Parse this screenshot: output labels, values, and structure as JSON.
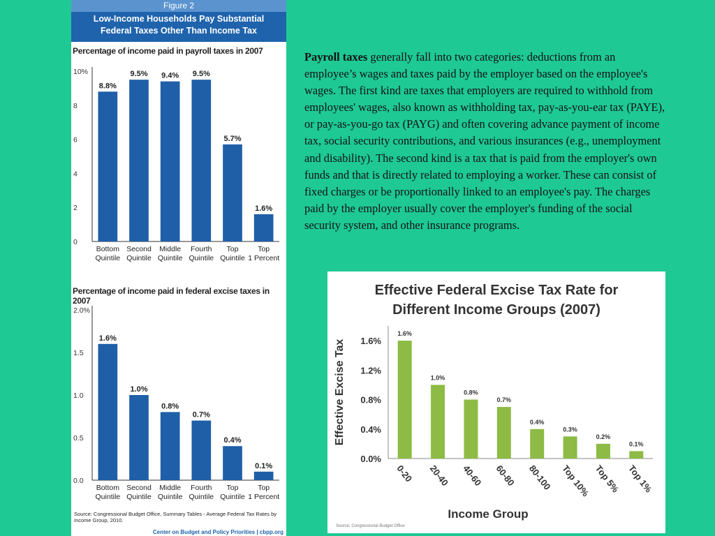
{
  "figure": {
    "label": "Figure 2",
    "title_line1": "Low-Income Households Pay Substantial",
    "title_line2": "Federal Taxes Other Than Income Tax",
    "source_note": "Source: Congressional Budget Office, Summary Tables - Average Federal Tax Rates by Income Group, 2010.",
    "credit": "Center on Budget and Policy Priorities | cbpp.org"
  },
  "paragraph": {
    "lead": "Payroll taxes",
    "body": " generally fall into two categories: deductions from an employee’s wages and taxes paid by the employer based on the employee's wages. The first kind are taxes that employers are required to withhold from employees' wages, also known as withholding tax, pay-as-you-ear  tax (PAYE), or pay-as-you-go tax (PAYG) and often covering advance payment of income tax, social security contributions, and various insurances (e.g., unemployment and disability). The second kind is a tax that is paid from the employer's own funds and that is directly related to employing a worker. These can consist of fixed charges or be proportionally linked to an employee's pay. The charges paid by the employer usually cover the employer's funding of the social security system, and other insurance programs."
  },
  "colors": {
    "background": "#1ec994",
    "cbpp_bar": "#1f5fa8",
    "excise_bar": "#8dbb45"
  },
  "chart_data": [
    {
      "type": "bar",
      "title": "Percentage of income paid in payroll taxes in 2007",
      "categories": [
        "Bottom Quintile",
        "Second Quintile",
        "Middle Quintile",
        "Fourth Quintile",
        "Top Quintile",
        "Top 1 Percent"
      ],
      "category_lines": [
        [
          "Bottom",
          "Quintile"
        ],
        [
          "Second",
          "Quintile"
        ],
        [
          "Middle",
          "Quintile"
        ],
        [
          "Fourth",
          "Quintile"
        ],
        [
          "Top",
          "Quintile"
        ],
        [
          "Top",
          "1 Percent"
        ]
      ],
      "values": [
        8.8,
        9.5,
        9.4,
        9.5,
        5.7,
        1.6
      ],
      "data_labels": [
        "8.8%",
        "9.5%",
        "9.4%",
        "9.5%",
        "5.7%",
        "1.6%"
      ],
      "yticks": [
        "0",
        "2",
        "4",
        "6",
        "8",
        "10%"
      ],
      "ylim": [
        0,
        10
      ],
      "grid": false
    },
    {
      "type": "bar",
      "title": "Percentage of income paid in federal excise taxes in 2007",
      "categories": [
        "Bottom Quintile",
        "Second Quintile",
        "Middle Quintile",
        "Fourth Quintile",
        "Top Quintile",
        "Top 1 Percent"
      ],
      "category_lines": [
        [
          "Bottom",
          "Quintile"
        ],
        [
          "Second",
          "Quintile"
        ],
        [
          "Middle",
          "Quintile"
        ],
        [
          "Fourth",
          "Quintile"
        ],
        [
          "Top",
          "Quintile"
        ],
        [
          "Top",
          "1 Percent"
        ]
      ],
      "values": [
        1.6,
        1.0,
        0.8,
        0.7,
        0.4,
        0.1
      ],
      "data_labels": [
        "1.6%",
        "1.0%",
        "0.8%",
        "0.7%",
        "0.4%",
        "0.1%"
      ],
      "yticks": [
        "0.0",
        "0.5",
        "1.0",
        "1.5",
        "2.0%"
      ],
      "ylim": [
        0,
        2
      ],
      "grid": false
    },
    {
      "type": "bar",
      "title": "Effective Federal Excise Tax Rate for Different Income Groups (2007)",
      "title_lines": [
        "Effective Federal Excise Tax Rate for",
        "Different Income Groups (2007)"
      ],
      "xlabel": "Income Group",
      "ylabel": "Effective Excise Tax",
      "categories": [
        "0-20",
        "20-40",
        "40-60",
        "60-80",
        "80-100",
        "Top 10%",
        "Top 5%",
        "Top 1%"
      ],
      "values": [
        1.6,
        1.0,
        0.8,
        0.7,
        0.4,
        0.3,
        0.2,
        0.1
      ],
      "data_labels": [
        "1.6%",
        "1.0%",
        "0.8%",
        "0.7%",
        "0.4%",
        "0.3%",
        "0.2%",
        "0.1%"
      ],
      "yticks": [
        "0.0%",
        "0.4%",
        "0.8%",
        "1.2%",
        "1.6%"
      ],
      "ylim": [
        0,
        1.8
      ],
      "grid": false,
      "source": "Source: Congressional Budget Office"
    }
  ]
}
